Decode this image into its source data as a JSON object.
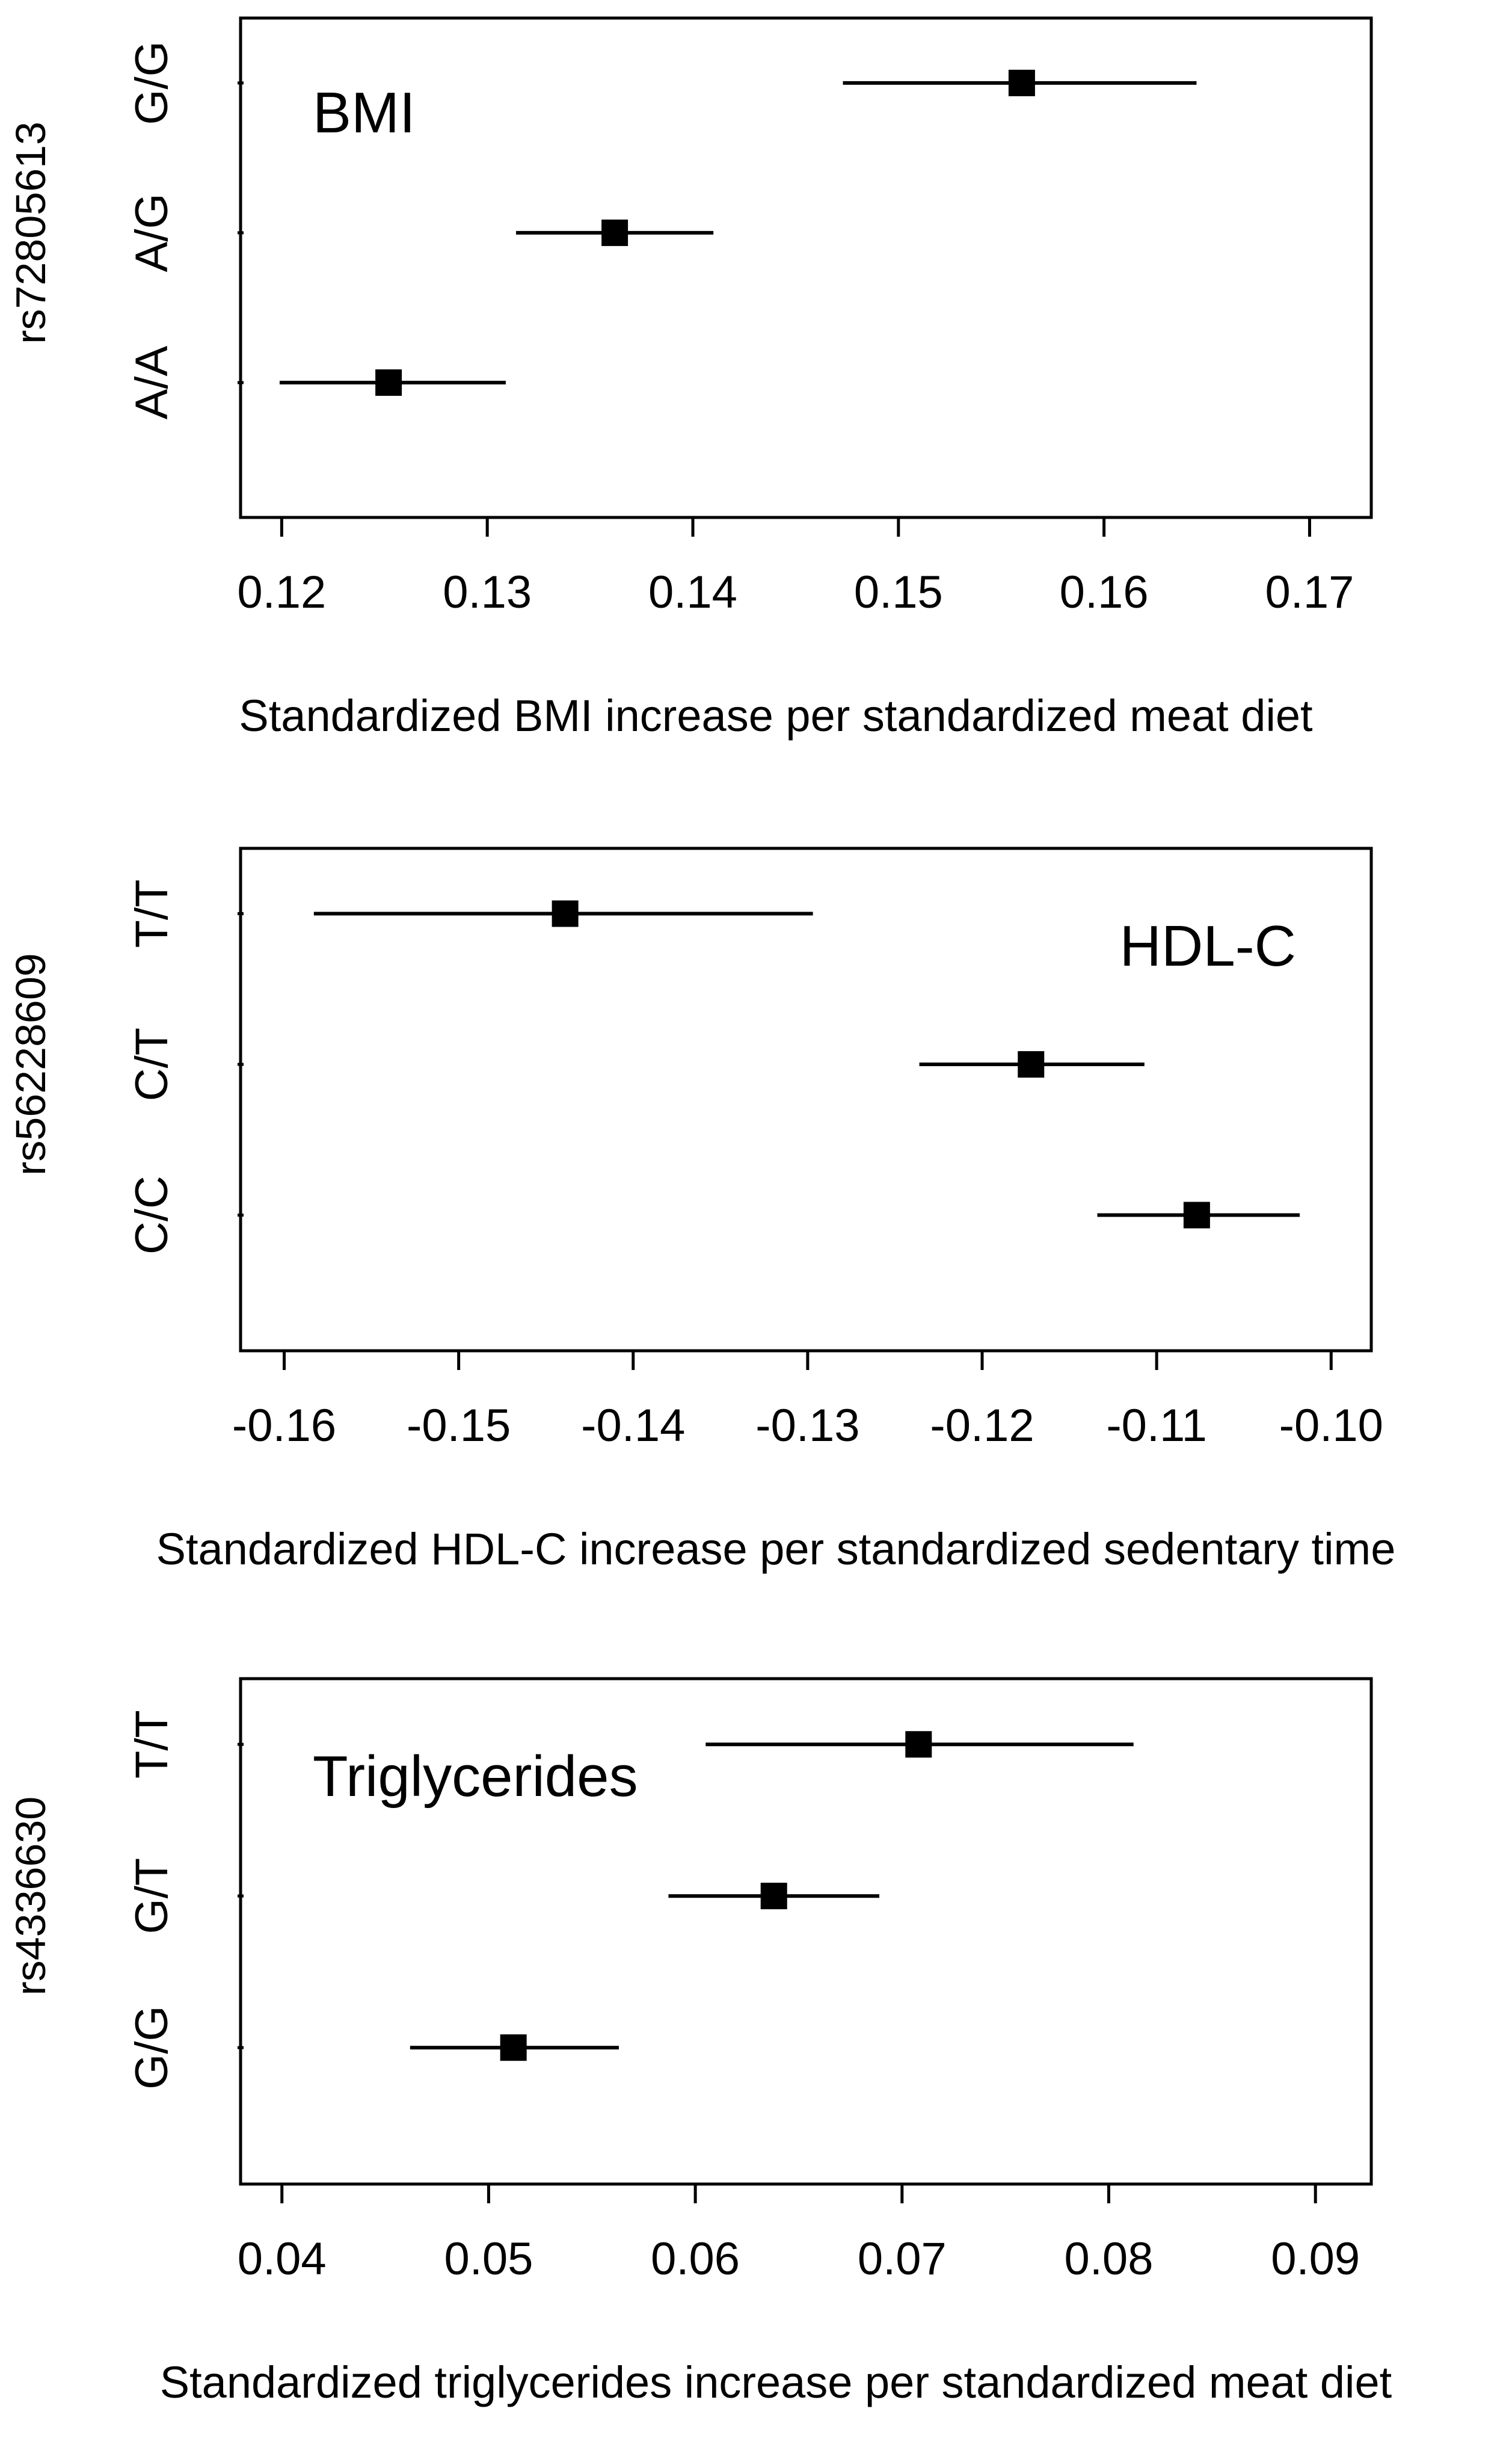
{
  "chart_data": [
    {
      "type": "forest",
      "title": "BMI",
      "title_position": "top-left",
      "snp": "rs72805613",
      "xlabel": "Standardized BMI increase per standardized meat diet",
      "xlim": [
        0.118,
        0.173
      ],
      "xticks": [
        0.12,
        0.13,
        0.14,
        0.15,
        0.16,
        0.17
      ],
      "xtick_labels": [
        "0.12",
        "0.13",
        "0.14",
        "0.15",
        "0.16",
        "0.17"
      ],
      "categories": [
        "G/G",
        "A/G",
        "A/A"
      ],
      "estimates": [
        0.156,
        0.1362,
        0.1252
      ],
      "ci_low": [
        0.1473,
        0.1314,
        0.1199
      ],
      "ci_high": [
        0.1645,
        0.141,
        0.1309
      ]
    },
    {
      "type": "forest",
      "title": "HDL-C",
      "title_position": "top-right",
      "snp": "rs56228609",
      "xlabel": "Standardized HDL-C increase per standardized sedentary time",
      "xlim": [
        -0.1625,
        -0.0977
      ],
      "xticks": [
        -0.16,
        -0.15,
        -0.14,
        -0.13,
        -0.12,
        -0.11,
        -0.1
      ],
      "xtick_labels": [
        "-0.16",
        "-0.15",
        "-0.14",
        "-0.13",
        "-0.12",
        "-0.11",
        "-0.10"
      ],
      "categories": [
        "T/T",
        "C/T",
        "C/C"
      ],
      "estimates": [
        -0.1439,
        -0.1172,
        -0.1077
      ],
      "ci_low": [
        -0.1583,
        -0.1236,
        -0.1134
      ],
      "ci_high": [
        -0.1297,
        -0.1107,
        -0.1018
      ]
    },
    {
      "type": "forest",
      "title": "Triglycerides",
      "title_position": "top-left",
      "snp": "rs4336630",
      "xlabel": "Standardized triglycerides increase per standardized meat diet",
      "xlim": [
        0.038,
        0.0927
      ],
      "xticks": [
        0.04,
        0.05,
        0.06,
        0.07,
        0.08,
        0.09
      ],
      "xtick_labels": [
        "0.04",
        "0.05",
        "0.06",
        "0.07",
        "0.08",
        "0.09"
      ],
      "categories": [
        "T/T",
        "G/T",
        "G/G"
      ],
      "estimates": [
        0.0708,
        0.0638,
        0.0512
      ],
      "ci_low": [
        0.0605,
        0.0587,
        0.0462
      ],
      "ci_high": [
        0.0812,
        0.0689,
        0.0563
      ]
    }
  ],
  "colors": {
    "ink": "#000000",
    "background": "#ffffff"
  }
}
